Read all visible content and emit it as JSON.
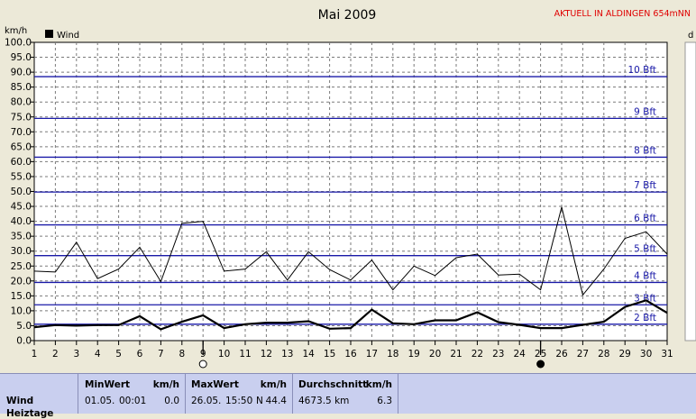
{
  "header": {
    "title": "Mai 2009",
    "station": "AKTUELL IN ALDINGEN 654mNN",
    "station_color": "#e00000",
    "y_unit": "km/h",
    "right_unit": "d"
  },
  "chart_data": {
    "type": "line",
    "title": "Mai 2009",
    "ylabel": "km/h",
    "ylim": [
      0,
      100
    ],
    "y_ticks": [
      "0.0",
      "5.0",
      "10.0",
      "15.0",
      "20.0",
      "25.0",
      "30.0",
      "35.0",
      "40.0",
      "45.0",
      "50.0",
      "55.0",
      "60.0",
      "65.0",
      "70.0",
      "75.0",
      "80.0",
      "85.0",
      "90.0",
      "95.0",
      "100.0"
    ],
    "x": [
      1,
      2,
      3,
      4,
      5,
      6,
      7,
      8,
      9,
      10,
      11,
      12,
      13,
      14,
      15,
      16,
      17,
      18,
      19,
      20,
      21,
      22,
      23,
      24,
      25,
      26,
      27,
      28,
      29,
      30,
      31
    ],
    "x_ticks": [
      "1",
      "2",
      "3",
      "4",
      "5",
      "6",
      "7",
      "8",
      "9",
      "10",
      "11",
      "12",
      "13",
      "14",
      "15",
      "16",
      "17",
      "18",
      "19",
      "20",
      "21",
      "22",
      "23",
      "24",
      "25",
      "26",
      "27",
      "28",
      "29",
      "30",
      "31"
    ],
    "grid": true,
    "legend": "top-left",
    "series": [
      {
        "name": "Wind",
        "role": "mean",
        "color": "#000000",
        "values": [
          4.5,
          5.2,
          5.0,
          5.2,
          5.2,
          8.2,
          3.8,
          6.3,
          8.5,
          4.2,
          5.5,
          6.0,
          6.0,
          6.5,
          4.0,
          4.2,
          10.4,
          5.8,
          5.5,
          6.8,
          6.8,
          9.5,
          6.2,
          5.3,
          4.2,
          4.2,
          5.3,
          6.3,
          11.3,
          13.5,
          9.3
        ]
      },
      {
        "name": "",
        "role": "gust",
        "color": "#000000",
        "values": [
          23.3,
          23.0,
          33.0,
          20.8,
          24.0,
          31.3,
          19.8,
          39.3,
          40.0,
          23.3,
          24.0,
          29.8,
          20.3,
          29.8,
          23.8,
          20.3,
          27.0,
          17.0,
          25.0,
          21.8,
          27.8,
          29.0,
          22.0,
          22.3,
          17.0,
          44.8,
          15.3,
          24.0,
          34.3,
          36.5,
          29.0
        ]
      }
    ],
    "beaufort_lines": [
      {
        "label": "2 Bft",
        "value": 5.5
      },
      {
        "label": "3 Bft",
        "value": 12.0
      },
      {
        "label": "4 Bft",
        "value": 19.5
      },
      {
        "label": "5 Bft",
        "value": 28.5
      },
      {
        "label": "6 Bft",
        "value": 38.8
      },
      {
        "label": "7 Bft",
        "value": 49.8
      },
      {
        "label": "8 Bft",
        "value": 61.5
      },
      {
        "label": "9 Bft",
        "value": 74.5
      },
      {
        "label": "10 Bft",
        "value": 88.5
      }
    ],
    "beaufort_color": "#1a1aa8",
    "moon_phases": [
      {
        "day": 9,
        "phase": "full"
      },
      {
        "day": 25,
        "phase": "new"
      }
    ]
  },
  "stats": {
    "row_label": "Wind",
    "next_row_label": "Heiztage",
    "min": {
      "title": "MinWert",
      "unit": "km/h",
      "date": "01.05.",
      "time": "00:01",
      "value": "0.0"
    },
    "max": {
      "title": "MaxWert",
      "unit": "km/h",
      "date": "26.05.",
      "time": "15:50",
      "dir": "N",
      "value": "44.4"
    },
    "avg": {
      "title": "Durchschnitt",
      "unit": "km/h",
      "dist": "4673.5 km",
      "value": "6.3"
    }
  }
}
